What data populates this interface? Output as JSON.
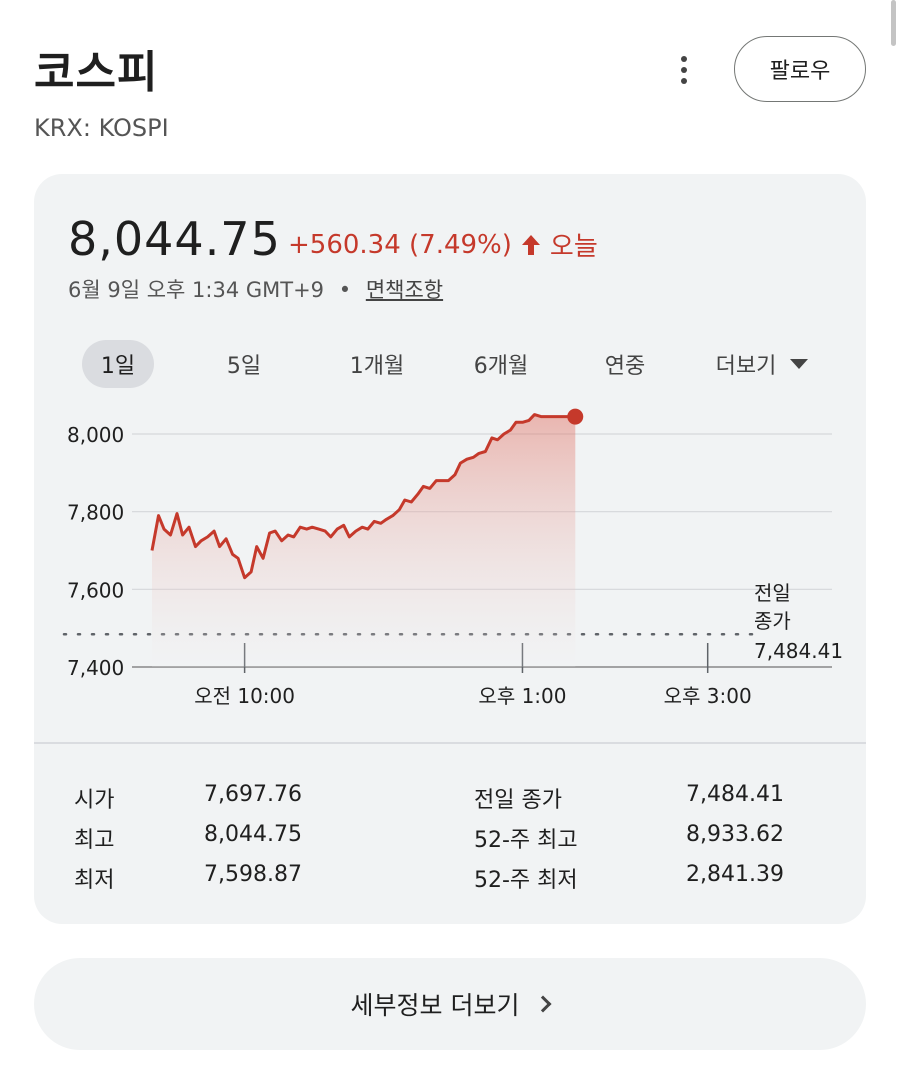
{
  "header": {
    "title": "코스피",
    "ticker": "KRX: KOSPI",
    "follow_label": "팔로우",
    "more_icon": "more-vert-icon"
  },
  "quote": {
    "price": "8,044.75",
    "change": "+560.34 (7.49%)",
    "direction_icon": "arrow-up-icon",
    "period": "오늘",
    "timestamp": "6월 9일 오후 1:34 GMT+9",
    "separator": "•",
    "disclaimer": "면책조항"
  },
  "colors": {
    "accent_red": "#c5392b",
    "card_bg": "#f1f3f4"
  },
  "range_tabs": [
    {
      "label": "1일",
      "active": true
    },
    {
      "label": "5일",
      "active": false
    },
    {
      "label": "1개월",
      "active": false
    },
    {
      "label": "6개월",
      "active": false
    },
    {
      "label": "연중",
      "active": false
    },
    {
      "label": "더보기",
      "active": false
    }
  ],
  "chart_data": {
    "type": "area",
    "y_ticks": [
      "8,000",
      "7,800",
      "7,600",
      "7,400"
    ],
    "y_tick_values": [
      8000,
      7800,
      7600,
      7400
    ],
    "ylim": [
      7400,
      8060
    ],
    "x_ticks": [
      "오전 10:00",
      "오후 1:00",
      "오후 3:00"
    ],
    "x_tick_hours": [
      10,
      13,
      15
    ],
    "x_range_hours": [
      9,
      15.5
    ],
    "previous_close": {
      "label_line1": "전일",
      "label_line2": "종가",
      "value": "7,484.41",
      "y": 7484.41
    },
    "series": [
      {
        "x": [
          9.0,
          9.07,
          9.13,
          9.2,
          9.27,
          9.33,
          9.4,
          9.47,
          9.53,
          9.6,
          9.67,
          9.73,
          9.8,
          9.87,
          9.93,
          10.0,
          10.07,
          10.13,
          10.2,
          10.27,
          10.33,
          10.4,
          10.47,
          10.53,
          10.6,
          10.67,
          10.73,
          10.8,
          10.87,
          10.93,
          11.0,
          11.07,
          11.13,
          11.2,
          11.27,
          11.33,
          11.4,
          11.47,
          11.53,
          11.6,
          11.67,
          11.73,
          11.8,
          11.87,
          11.93,
          12.0,
          12.07,
          12.13,
          12.2,
          12.27,
          12.33,
          12.4,
          12.47,
          12.53,
          12.6,
          12.67,
          12.73,
          12.8,
          12.87,
          12.93,
          13.0,
          13.07,
          13.13,
          13.2,
          13.27,
          13.33,
          13.4,
          13.47,
          13.57
        ],
        "y": [
          7700,
          7790,
          7755,
          7740,
          7795,
          7740,
          7760,
          7710,
          7725,
          7735,
          7750,
          7710,
          7730,
          7690,
          7680,
          7630,
          7645,
          7710,
          7680,
          7745,
          7750,
          7725,
          7740,
          7735,
          7760,
          7755,
          7760,
          7755,
          7750,
          7735,
          7755,
          7765,
          7735,
          7750,
          7760,
          7755,
          7775,
          7770,
          7780,
          7790,
          7805,
          7830,
          7825,
          7845,
          7865,
          7860,
          7880,
          7880,
          7880,
          7895,
          7925,
          7935,
          7940,
          7950,
          7955,
          7990,
          7985,
          8000,
          8010,
          8030,
          8030,
          8035,
          8050,
          8044.75,
          8044.75,
          8044.75,
          8044.75,
          8044.75,
          8044.75
        ]
      }
    ],
    "grid": true,
    "last_point": {
      "x": 13.57,
      "y": 8044.75
    }
  },
  "stats": {
    "left": [
      {
        "label": "시가",
        "value": "7,697.76"
      },
      {
        "label": "최고",
        "value": "8,044.75"
      },
      {
        "label": "최저",
        "value": "7,598.87"
      }
    ],
    "right": [
      {
        "label": "전일 종가",
        "value": "7,484.41"
      },
      {
        "label": "52-주 최고",
        "value": "8,933.62"
      },
      {
        "label": "52-주 최저",
        "value": "2,841.39"
      }
    ]
  },
  "details_button": {
    "label": "세부정보 더보기",
    "icon": "chevron-right-icon"
  }
}
